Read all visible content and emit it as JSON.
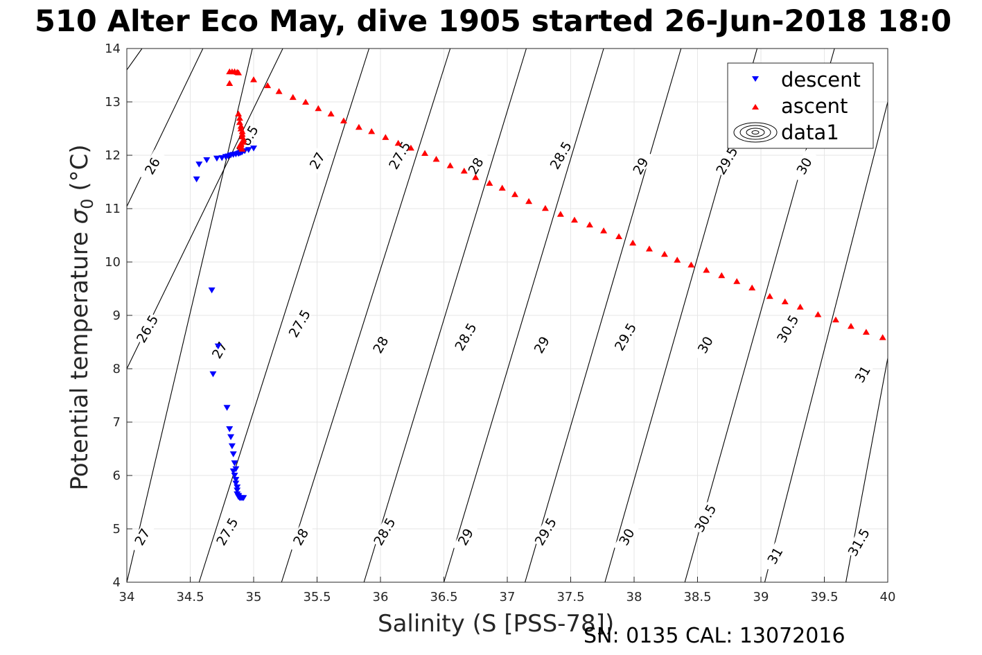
{
  "chart_data": {
    "type": "scatter",
    "title": "510 Alter Eco May, dive 1905 started 26-Jun-2018 18:0",
    "xlabel": "Salinity (S [PSS-78])",
    "ylabel_main": "Potential temperature ",
    "ylabel_sigma": "σ",
    "ylabel_sub": "0",
    "ylabel_unit": " (°C)",
    "xlim": [
      34,
      40
    ],
    "ylim": [
      4,
      14
    ],
    "xticks": [
      "34",
      "34.5",
      "35",
      "35.5",
      "36",
      "36.5",
      "37",
      "37.5",
      "38",
      "38.5",
      "39",
      "39.5",
      "40"
    ],
    "yticks": [
      "4",
      "5",
      "6",
      "7",
      "8",
      "9",
      "10",
      "11",
      "12",
      "13",
      "14"
    ],
    "grid": true,
    "legend_position": "top-right",
    "legend": [
      "descent",
      "ascent",
      "data1"
    ],
    "series": [
      {
        "name": "descent",
        "marker": "triangle-down",
        "color": "#0000ff",
        "x": [
          34.55,
          34.57,
          34.63,
          34.67,
          34.72,
          34.68,
          34.71,
          34.79,
          34.81,
          34.82,
          34.83,
          34.84,
          34.85,
          34.86,
          34.84,
          34.85,
          34.86,
          34.86,
          34.87,
          34.87,
          34.87,
          34.88,
          34.88,
          34.89,
          34.9,
          34.91,
          34.92,
          34.75,
          34.78,
          34.8,
          34.82,
          34.84,
          34.86,
          34.88,
          34.89,
          34.9,
          34.91,
          34.93,
          34.96,
          35.0
        ],
        "y": [
          11.55,
          11.83,
          11.91,
          9.47,
          8.42,
          7.9,
          11.94,
          7.27,
          6.87,
          6.72,
          6.55,
          6.4,
          6.23,
          6.12,
          6.08,
          6.0,
          5.92,
          5.85,
          5.78,
          5.72,
          5.65,
          5.62,
          5.6,
          5.58,
          5.58,
          5.58,
          5.58,
          11.95,
          11.97,
          11.98,
          12.0,
          12.01,
          12.02,
          12.03,
          12.04,
          12.05,
          12.06,
          12.08,
          12.1,
          12.13
        ]
      },
      {
        "name": "ascent",
        "marker": "triangle-up",
        "color": "#ff0000",
        "x": [
          34.88,
          34.89,
          34.89,
          34.9,
          34.9,
          34.91,
          34.91,
          34.91,
          34.92,
          34.92,
          34.9,
          34.9,
          34.89,
          34.9,
          34.91,
          34.81,
          34.81,
          34.83,
          34.85,
          34.87,
          34.88,
          35.0,
          35.11,
          35.2,
          35.31,
          35.41,
          35.51,
          35.61,
          35.71,
          35.83,
          35.93,
          36.04,
          36.14,
          36.24,
          36.35,
          36.44,
          36.55,
          36.66,
          36.75,
          36.86,
          36.96,
          37.06,
          37.17,
          37.3,
          37.42,
          37.53,
          37.65,
          37.76,
          37.88,
          37.99,
          38.12,
          38.24,
          38.34,
          38.45,
          38.57,
          38.69,
          38.81,
          38.93,
          39.07,
          39.19,
          39.31,
          39.45,
          39.59,
          39.71,
          39.83,
          39.96
        ],
        "y": [
          12.78,
          12.7,
          12.62,
          12.55,
          12.5,
          12.45,
          12.4,
          12.35,
          12.3,
          12.25,
          12.22,
          12.2,
          12.18,
          12.15,
          12.12,
          13.35,
          13.57,
          13.57,
          13.57,
          13.56,
          13.55,
          13.42,
          13.31,
          13.2,
          13.09,
          13.0,
          12.88,
          12.78,
          12.65,
          12.53,
          12.45,
          12.34,
          12.23,
          12.14,
          12.04,
          11.93,
          11.81,
          11.71,
          11.59,
          11.48,
          11.39,
          11.27,
          11.14,
          11.01,
          10.9,
          10.79,
          10.7,
          10.59,
          10.48,
          10.36,
          10.25,
          10.15,
          10.04,
          9.95,
          9.85,
          9.75,
          9.64,
          9.52,
          9.36,
          9.26,
          9.16,
          9.02,
          8.92,
          8.8,
          8.69,
          8.59
        ]
      }
    ],
    "contour_levels": [
      "26",
      "26.5",
      "27",
      "27.5",
      "28",
      "28.5",
      "29",
      "29.5",
      "30",
      "30.5",
      "31",
      "31.5"
    ],
    "contours": [
      {
        "level": "26",
        "x": [
          34.0,
          34.99
        ],
        "y": [
          4.0,
          14.0
        ]
      },
      {
        "level": "26",
        "x": [
          34.0,
          34.12
        ],
        "y": [
          13.6,
          14.0
        ]
      },
      {
        "level": "26.5",
        "x": [
          34.0,
          34.6
        ],
        "y": [
          11.04,
          14.0
        ]
      },
      {
        "level": "27",
        "x": [
          34.0,
          35.23
        ],
        "y": [
          8.0,
          14.0
        ]
      },
      {
        "level": "27.5",
        "x": [
          34.57,
          35.91
        ],
        "y": [
          4.0,
          14.0
        ]
      },
      {
        "level": "28",
        "x": [
          35.22,
          36.55
        ],
        "y": [
          4.0,
          14.0
        ]
      },
      {
        "level": "28.5",
        "x": [
          35.87,
          37.15
        ],
        "y": [
          4.0,
          14.0
        ]
      },
      {
        "level": "29",
        "x": [
          36.5,
          37.76
        ],
        "y": [
          4.0,
          14.0
        ]
      },
      {
        "level": "29.5",
        "x": [
          37.14,
          38.37
        ],
        "y": [
          4.0,
          14.0
        ]
      },
      {
        "level": "30",
        "x": [
          37.77,
          38.97
        ],
        "y": [
          4.0,
          14.0
        ]
      },
      {
        "level": "30.5",
        "x": [
          38.4,
          39.58
        ],
        "y": [
          4.0,
          14.0
        ]
      },
      {
        "level": "31",
        "x": [
          39.03,
          40.0
        ],
        "y": [
          4.0,
          13.0
        ]
      },
      {
        "level": "31.5",
        "x": [
          39.67,
          40.0
        ],
        "y": [
          4.0,
          8.2
        ]
      }
    ],
    "contour_labels": [
      {
        "text": "26",
        "x": 34.2,
        "y": 11.8
      },
      {
        "text": "26.5",
        "x": 34.16,
        "y": 8.75
      },
      {
        "text": "27",
        "x": 34.12,
        "y": 4.85
      },
      {
        "text": "26.5",
        "x": 34.95,
        "y": 12.3
      },
      {
        "text": "27",
        "x": 34.73,
        "y": 8.35
      },
      {
        "text": "27.5",
        "x": 34.79,
        "y": 4.95
      },
      {
        "text": "27",
        "x": 35.5,
        "y": 11.9
      },
      {
        "text": "27.5",
        "x": 35.36,
        "y": 8.85
      },
      {
        "text": "28",
        "x": 35.37,
        "y": 4.85
      },
      {
        "text": "27.5",
        "x": 36.15,
        "y": 12.0
      },
      {
        "text": "28",
        "x": 36.0,
        "y": 8.45
      },
      {
        "text": "28.5",
        "x": 36.03,
        "y": 4.95
      },
      {
        "text": "28",
        "x": 36.75,
        "y": 11.8
      },
      {
        "text": "28.5",
        "x": 36.67,
        "y": 8.6
      },
      {
        "text": "29",
        "x": 36.67,
        "y": 4.85
      },
      {
        "text": "28.5",
        "x": 37.42,
        "y": 12.0
      },
      {
        "text": "29",
        "x": 37.27,
        "y": 8.45
      },
      {
        "text": "29.5",
        "x": 37.3,
        "y": 4.95
      },
      {
        "text": "29",
        "x": 38.05,
        "y": 11.8
      },
      {
        "text": "29.5",
        "x": 37.93,
        "y": 8.6
      },
      {
        "text": "30",
        "x": 37.94,
        "y": 4.85
      },
      {
        "text": "29.5",
        "x": 38.73,
        "y": 11.9
      },
      {
        "text": "30",
        "x": 38.56,
        "y": 8.45
      },
      {
        "text": "30.5",
        "x": 38.56,
        "y": 5.2
      },
      {
        "text": "30",
        "x": 39.34,
        "y": 11.8
      },
      {
        "text": "30.5",
        "x": 39.21,
        "y": 8.75
      },
      {
        "text": "31",
        "x": 39.11,
        "y": 4.5
      },
      {
        "text": "31",
        "x": 39.8,
        "y": 7.9
      },
      {
        "text": "31.5",
        "x": 39.77,
        "y": 4.75
      }
    ]
  },
  "footer": "SN: 0135  CAL: 13072016",
  "colors": {
    "descent": "#0000ff",
    "ascent": "#ff0000",
    "grid": "#e6e6e6",
    "axis": "#262626"
  }
}
